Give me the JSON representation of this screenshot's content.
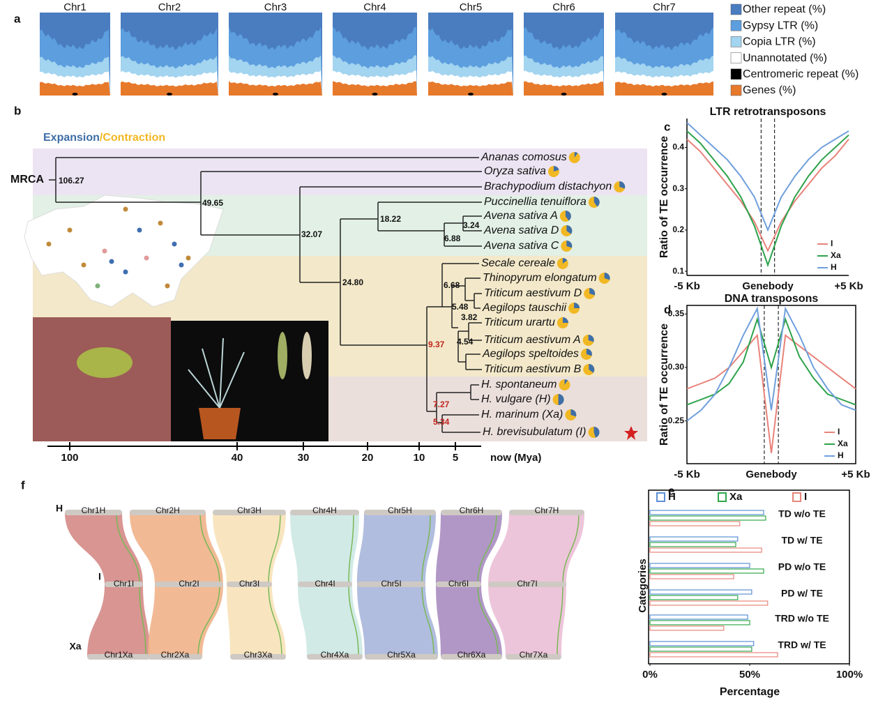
{
  "panel_labels": [
    "a",
    "b",
    "c",
    "d",
    "e",
    "f"
  ],
  "panel_a": {
    "chromosomes": [
      "Chr1",
      "Chr2",
      "Chr3",
      "Chr4",
      "Chr5",
      "Chr6",
      "Chr7"
    ],
    "legend": [
      {
        "name": "Other repeat (%)",
        "color": "#4a7cc0"
      },
      {
        "name": "Gypsy LTR (%)",
        "color": "#5c9ede"
      },
      {
        "name": "Copia LTR (%)",
        "color": "#a3d4f0"
      },
      {
        "name": "Unannotated (%)",
        "color": "#ffffff"
      },
      {
        "name": "Centromeric repeat (%)",
        "color": "#000000"
      },
      {
        "name": "Genes (%)",
        "color": "#e7792b"
      }
    ]
  },
  "panel_b": {
    "heading": [
      "Expansion",
      "/Contraction"
    ],
    "root": "MRCA",
    "species": [
      {
        "name": "Ananas comosus",
        "expansion": 10
      },
      {
        "name": "Oryza sativa",
        "expansion": 20
      },
      {
        "name": "Brachypodium distachyon",
        "expansion": 30
      },
      {
        "name": "Puccinellia tenuiflora",
        "expansion": 40
      },
      {
        "name": "Avena sativa A",
        "expansion": 40
      },
      {
        "name": "Avena sativa D",
        "expansion": 35
      },
      {
        "name": "Avena sativa C",
        "expansion": 30
      },
      {
        "name": "Secale cereale",
        "expansion": 15
      },
      {
        "name": "Thinopyrum elongatum",
        "expansion": 30
      },
      {
        "name": "Triticum aestivum D",
        "expansion": 30
      },
      {
        "name": "Aegilops tauschii",
        "expansion": 25
      },
      {
        "name": "Triticum urartu",
        "expansion": 25
      },
      {
        "name": "Triticum aestivum A",
        "expansion": 30
      },
      {
        "name": "Aegilops speltoides",
        "expansion": 30
      },
      {
        "name": "Triticum aestivum B",
        "expansion": 35
      },
      {
        "name": "H. spontaneum",
        "expansion": 10
      },
      {
        "name": "H. vulgare (H)",
        "expansion": 50
      },
      {
        "name": "H. marinum (Xa)",
        "expansion": 30
      },
      {
        "name": "H. brevisubulatum (I)",
        "expansion": 45
      }
    ],
    "node_ages": [
      106.27,
      49.65,
      32.07,
      18.22,
      3.24,
      6.88,
      {
        "value": 24.8,
        "label": "24.80"
      },
      6.68,
      5.48,
      3.82,
      4.54,
      9.37,
      7.27,
      5.34
    ],
    "time_axis": {
      "ticks": [
        100,
        40,
        30,
        20,
        10,
        5
      ],
      "label": "now (Mya)"
    }
  },
  "chart_data": [
    {
      "type": "line",
      "title": "LTR retrotransposons",
      "y_label": "Ratio of TE occurrence",
      "categories": [
        "-5 Kb",
        null,
        null,
        null,
        null,
        null,
        "Genebody",
        null,
        null,
        null,
        null,
        null,
        "+5 Kb"
      ],
      "series": [
        {
          "name": "I",
          "color": "#e8827a",
          "values": [
            0.42,
            0.39,
            0.35,
            0.31,
            0.27,
            0.22,
            0.15,
            0.22,
            0.27,
            0.31,
            0.35,
            0.38,
            0.42
          ]
        },
        {
          "name": "Xa",
          "color": "#2ca24a",
          "values": [
            0.44,
            0.41,
            0.37,
            0.33,
            0.28,
            0.21,
            0.115,
            0.21,
            0.28,
            0.33,
            0.37,
            0.4,
            0.43
          ]
        },
        {
          "name": "H",
          "color": "#6f9fdc",
          "values": [
            0.46,
            0.43,
            0.4,
            0.37,
            0.33,
            0.28,
            0.2,
            0.28,
            0.33,
            0.37,
            0.4,
            0.42,
            0.44
          ]
        }
      ],
      "ylim": [
        0.09,
        0.47
      ],
      "yticks": [
        0.1,
        0.2,
        0.3,
        0.4
      ],
      "legend": "lower right",
      "frame": false
    },
    {
      "type": "line",
      "title": "DNA transposons",
      "y_label": "Ratio of TE occurrence",
      "categories": [
        "-5 Kb",
        null,
        null,
        null,
        null,
        null,
        "Genebody",
        null,
        null,
        null,
        null,
        null,
        "+5 Kb"
      ],
      "series": [
        {
          "name": "I",
          "color": "#e8827a",
          "values": [
            0.28,
            0.285,
            0.29,
            0.3,
            0.315,
            0.33,
            0.22,
            0.33,
            0.32,
            0.31,
            0.3,
            0.29,
            0.28
          ]
        },
        {
          "name": "Xa",
          "color": "#2ca24a",
          "values": [
            0.265,
            0.27,
            0.275,
            0.285,
            0.305,
            0.345,
            0.3,
            0.345,
            0.31,
            0.29,
            0.275,
            0.27,
            0.265
          ]
        },
        {
          "name": "H",
          "color": "#6f9fdc",
          "values": [
            0.25,
            0.26,
            0.275,
            0.3,
            0.33,
            0.355,
            0.26,
            0.355,
            0.33,
            0.3,
            0.28,
            0.265,
            0.26
          ]
        }
      ],
      "ylim": [
        0.21,
        0.358
      ],
      "yticks": [
        0.25,
        {
          "value": 0.3,
          "label": "0.30"
        },
        0.35
      ],
      "legend": "lower right",
      "frame": true
    },
    {
      "type": "barh",
      "x_label": "Percentage",
      "y_label": "Categories",
      "categories": [
        "TD w/o TE",
        "TD w/ TE",
        "PD w/o TE",
        "PD w/ TE",
        "TRD w/o TE",
        "TRD w/ TE"
      ],
      "series": [
        {
          "name": "H",
          "color": "#5b8fd6",
          "values": [
            57,
            44,
            50,
            51,
            49,
            52
          ]
        },
        {
          "name": "Xa",
          "color": "#2ea84a",
          "values": [
            58,
            43,
            57,
            44,
            50,
            51
          ]
        },
        {
          "name": "I",
          "color": "#e8857a",
          "values": [
            45,
            56,
            42,
            59,
            37,
            64
          ]
        }
      ],
      "xlim": [
        0,
        100
      ],
      "xticks": [
        {
          "value": 0,
          "label": "0%"
        },
        {
          "value": 50,
          "label": "50%"
        },
        {
          "value": 100,
          "label": "100%"
        }
      ],
      "legend": "top"
    }
  ],
  "panel_f": {
    "genomes": [
      "H",
      "I",
      "Xa"
    ],
    "rows": [
      [
        "Chr1H",
        "Chr2H",
        "Chr3H",
        "Chr4H",
        "Chr5H",
        "Chr6H",
        "Chr7H"
      ],
      [
        "Chr1I",
        "Chr2I",
        "Chr3I",
        "Chr4I",
        "Chr5I",
        "Chr6I",
        "Chr7I"
      ],
      [
        "Chr1Xa",
        "Chr2Xa",
        "Chr3Xa",
        "Chr4Xa",
        "Chr5Xa",
        "Chr6Xa",
        "Chr7Xa"
      ]
    ]
  }
}
